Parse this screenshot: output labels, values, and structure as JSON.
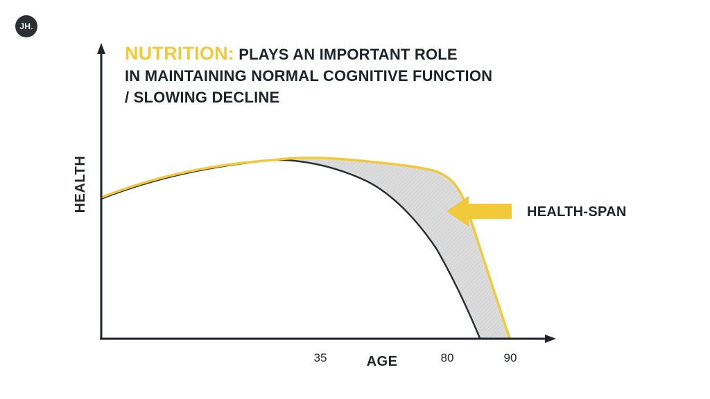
{
  "logo": {
    "text": "JH",
    "dot": ".",
    "dot_color": "#f2cc3d"
  },
  "heading": {
    "emphasis": "NUTRITION:",
    "line1": " PLAYS AN IMPORTANT ROLE",
    "line2": "IN MAINTAINING NORMAL COGNITIVE FUNCTION",
    "line3": "/ SLOWING DECLINE",
    "emphasis_color": "#f2c93a"
  },
  "axes": {
    "y_label": "HEALTH",
    "x_label": "AGE",
    "ticks": [
      {
        "label": "35",
        "value": 35
      },
      {
        "label": "80",
        "value": 80
      },
      {
        "label": "90",
        "value": 90
      }
    ]
  },
  "callout": {
    "label": "HEALTH-SPAN"
  },
  "colors": {
    "ink": "#1f2429",
    "accent": "#f2c93a",
    "shade": "#d9d9d9"
  },
  "series": [
    {
      "key": "with_nutrition",
      "color": "#f2c93a"
    },
    {
      "key": "without_nutrition",
      "color": "#2b3035"
    }
  ]
}
